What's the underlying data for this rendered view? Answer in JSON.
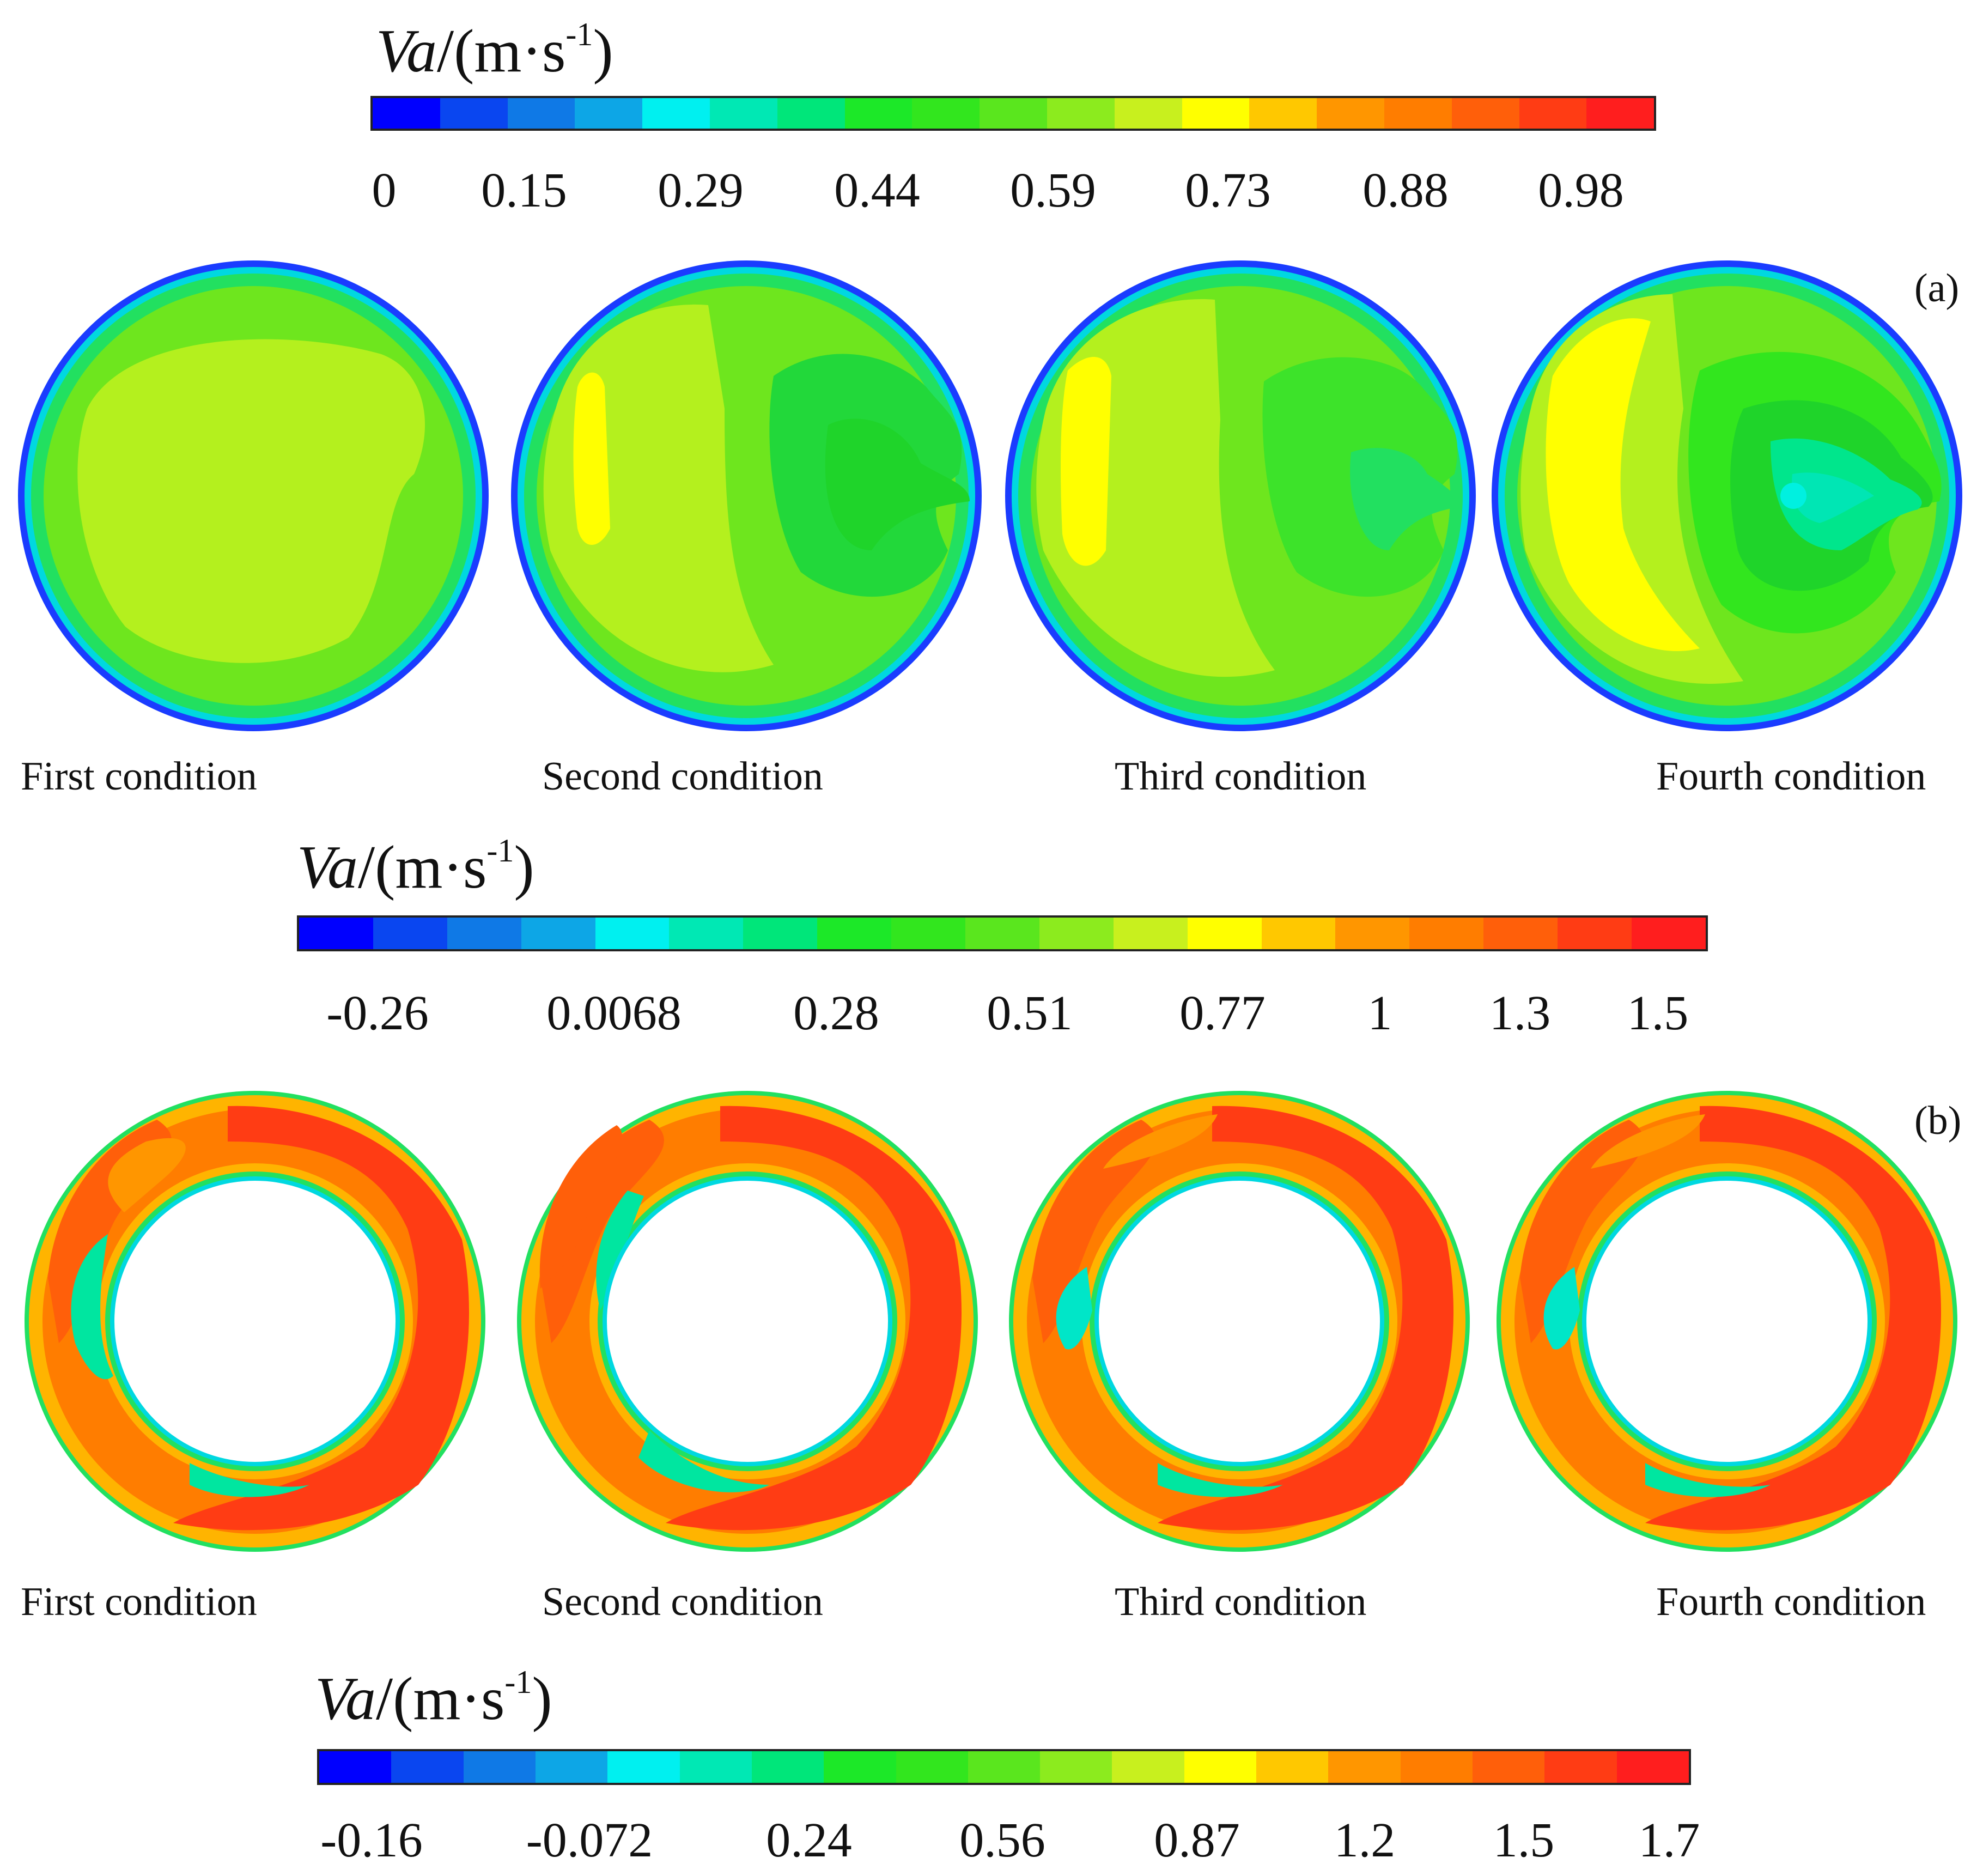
{
  "colormap": [
    "#0000ff",
    "#0a46f0",
    "#0f79e6",
    "#0da6e6",
    "#00f0f0",
    "#00e8b4",
    "#00e67a",
    "#1ce828",
    "#32e61e",
    "#5ae61e",
    "#8ceb1e",
    "#c8f01e",
    "#ffff00",
    "#ffc800",
    "#ff9600",
    "#ff7d00",
    "#ff5f0a",
    "#ff3c14",
    "#ff1e1e"
  ],
  "colorbars": [
    {
      "title_var": "Va",
      "title_unit": "/(m·s",
      "title_exp": "-1",
      "title_close": ")",
      "ticks": [
        "0",
        "0.15",
        "0.29",
        "0.44",
        "0.59",
        "0.73",
        "0.88",
        "0.98"
      ]
    },
    {
      "title_var": "Va",
      "title_unit": "/(m·s",
      "title_exp": "-1",
      "title_close": ")",
      "ticks": [
        "-0.26",
        "0.0068",
        "0.28",
        "0.51",
        "0.77",
        "1",
        "1.3",
        "1.5"
      ]
    },
    {
      "title_var": "Va",
      "title_unit": "/(m·s",
      "title_exp": "-1",
      "title_close": ")",
      "ticks": [
        "-0.16",
        "-0.072",
        "0.24",
        "0.56",
        "0.87",
        "1.2",
        "1.5",
        "1.7"
      ]
    }
  ],
  "panels": [
    {
      "label": "(a)",
      "captions": [
        "First condition",
        "Second condition",
        "Third condition",
        "Fourth condition"
      ]
    },
    {
      "label": "(b)",
      "captions": [
        "First condition",
        "Second condition",
        "Third condition",
        "Fourth condition"
      ]
    }
  ],
  "contour_colors": {
    "rim_blue": "#1a3cff",
    "rim_cyan": "#00d8e0",
    "rim_green": "#22e060",
    "field_green": "#6ee61e",
    "field_lime": "#b4f01e",
    "field_yellow": "#ffff00",
    "field_dark_green": "#1fd42a",
    "field_teal": "#00e6a0",
    "ring_red": "#ff3c14",
    "ring_orange": "#ff7d00",
    "ring_amber": "#ffb400",
    "ring_green": "#22e060",
    "ring_cyan": "#00e6c8"
  }
}
